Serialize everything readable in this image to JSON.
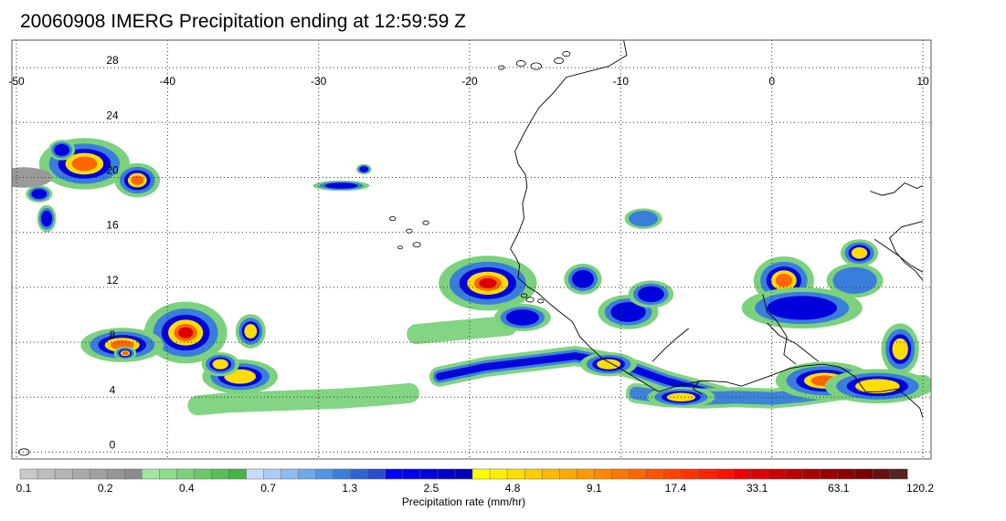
{
  "title": "20060908 IMERG Precipitation ending at 12:59:59 Z",
  "map": {
    "lon_range": [
      -50,
      10
    ],
    "lat_range": [
      -0.5,
      30
    ],
    "lon_ticks": [
      -50,
      -40,
      -30,
      -20,
      -10,
      0,
      10
    ],
    "lat_ticks": [
      0,
      4,
      8,
      12,
      16,
      20,
      24,
      28
    ],
    "lon_tick_labels": [
      "-50",
      "-40",
      "-30",
      "-20",
      "-10",
      "0",
      "10"
    ],
    "lat_tick_labels": [
      "0",
      "4",
      "8",
      "12",
      "16",
      "20",
      "24",
      "28"
    ],
    "grid": true
  },
  "colorbar": {
    "title": "Precipitation rate (mm/hr)",
    "tick_labels": [
      "0.1",
      "0.2",
      "0.4",
      "0.7",
      "1.3",
      "2.5",
      "4.8",
      "9.1",
      "17.4",
      "33.1",
      "63.1",
      "120.2"
    ],
    "colors": [
      "#c8c8c8",
      "#bebebe",
      "#b4b4b4",
      "#aaaaaa",
      "#a0a0a0",
      "#969696",
      "#8c8c8c",
      "#a0e6a0",
      "#8edc8e",
      "#7cd27c",
      "#6ac86a",
      "#58be58",
      "#46b446",
      "#c8dcff",
      "#aaccf6",
      "#8cbcf0",
      "#6eaaea",
      "#5094e4",
      "#3a7edc",
      "#2e64d4",
      "#2a4ccc",
      "#0000ff",
      "#0000ee",
      "#0000dd",
      "#0000cc",
      "#0000bb",
      "#ffff00",
      "#ffee00",
      "#ffdd00",
      "#ffcc00",
      "#ffbb00",
      "#ffaa00",
      "#ff9900",
      "#ff8800",
      "#ff7700",
      "#ff6600",
      "#ff5500",
      "#ff4400",
      "#ff3300",
      "#ff2200",
      "#ff1100",
      "#ee0000",
      "#dd0000",
      "#cc0000",
      "#bb0000",
      "#aa0000",
      "#990000",
      "#880000",
      "#770000",
      "#661111",
      "#552222"
    ]
  },
  "precip_cells": [
    {
      "lon": -18.8,
      "lat": 12.3,
      "rx": 2.6,
      "ry": 1.6,
      "level": 5
    },
    {
      "lon": -38.8,
      "lat": 8.7,
      "rx": 2.2,
      "ry": 1.8,
      "level": 5
    },
    {
      "lon": -45.5,
      "lat": 21.0,
      "rx": 2.4,
      "ry": 1.5,
      "level": 4
    },
    {
      "lon": -42.0,
      "lat": 19.8,
      "rx": 1.2,
      "ry": 1.0,
      "level": 4
    },
    {
      "lon": -43.0,
      "lat": 7.8,
      "rx": 2.2,
      "ry": 1.0,
      "level": 4
    },
    {
      "lon": -35.2,
      "lat": 5.5,
      "rx": 2.0,
      "ry": 1.0,
      "level": 3
    },
    {
      "lon": -34.5,
      "lat": 8.8,
      "rx": 0.8,
      "ry": 1.0,
      "level": 3
    },
    {
      "lon": -36.5,
      "lat": 6.4,
      "rx": 1.0,
      "ry": 0.7,
      "level": 3
    },
    {
      "lon": -48.0,
      "lat": 17.0,
      "rx": 0.5,
      "ry": 0.8,
      "level": 2
    },
    {
      "lon": -48.5,
      "lat": 18.8,
      "rx": 0.7,
      "ry": 0.5,
      "level": 2
    },
    {
      "lon": -49.5,
      "lat": 20.0,
      "rx": 1.5,
      "ry": 0.6,
      "level": 0
    },
    {
      "lon": -47.0,
      "lat": 22.0,
      "rx": 0.7,
      "ry": 0.6,
      "level": 2
    },
    {
      "lon": 0.8,
      "lat": 12.5,
      "rx": 1.6,
      "ry": 1.4,
      "level": 4
    },
    {
      "lon": 2.0,
      "lat": 10.5,
      "rx": 3.2,
      "ry": 1.2,
      "level": 2
    },
    {
      "lon": 5.5,
      "lat": 12.5,
      "rx": 1.5,
      "ry": 1.0,
      "level": 1
    },
    {
      "lon": 5.8,
      "lat": 14.5,
      "rx": 1.0,
      "ry": 0.8,
      "level": 3
    },
    {
      "lon": 3.5,
      "lat": 5.2,
      "rx": 2.6,
      "ry": 1.1,
      "level": 4
    },
    {
      "lon": 7.0,
      "lat": 4.8,
      "rx": 2.8,
      "ry": 1.0,
      "level": 3
    },
    {
      "lon": 8.5,
      "lat": 7.5,
      "rx": 1.0,
      "ry": 1.5,
      "level": 3
    },
    {
      "lon": -9.5,
      "lat": 10.2,
      "rx": 1.6,
      "ry": 1.0,
      "level": 2
    },
    {
      "lon": -8.0,
      "lat": 11.5,
      "rx": 1.2,
      "ry": 0.8,
      "level": 2
    },
    {
      "lon": -16.5,
      "lat": 9.8,
      "rx": 1.5,
      "ry": 0.8,
      "level": 2
    },
    {
      "lon": -12.5,
      "lat": 12.6,
      "rx": 1.0,
      "ry": 0.9,
      "level": 2
    },
    {
      "lon": -8.5,
      "lat": 17.0,
      "rx": 1.0,
      "ry": 0.6,
      "level": 1
    },
    {
      "lon": -28.5,
      "lat": 19.4,
      "rx": 1.5,
      "ry": 0.3,
      "level": 2
    },
    {
      "lon": -27.0,
      "lat": 20.6,
      "rx": 0.4,
      "ry": 0.3,
      "level": 2
    },
    {
      "lon": -42.8,
      "lat": 7.2,
      "rx": 0.6,
      "ry": 0.4,
      "level": 4
    },
    {
      "lon": -10.8,
      "lat": 6.4,
      "rx": 1.5,
      "ry": 0.7,
      "level": 3
    },
    {
      "lon": -6.0,
      "lat": 4.0,
      "rx": 1.8,
      "ry": 0.6,
      "level": 3
    }
  ],
  "precip_bands": [
    {
      "points": [
        [
          -22.0,
          5.5
        ],
        [
          -19.0,
          6.2
        ],
        [
          -16.0,
          6.6
        ],
        [
          -13.0,
          7.0
        ],
        [
          -11.0,
          6.6
        ],
        [
          -9.0,
          6.0
        ],
        [
          -7.0,
          5.2
        ],
        [
          -5.0,
          4.6
        ],
        [
          -3.0,
          4.0
        ]
      ],
      "level": 3
    },
    {
      "points": [
        [
          -9.0,
          4.3
        ],
        [
          -7.0,
          4.0
        ],
        [
          -4.5,
          3.9
        ],
        [
          -2.5,
          4.0
        ],
        [
          0.0,
          3.9
        ],
        [
          2.0,
          4.1
        ],
        [
          4.5,
          4.5
        ],
        [
          7.5,
          4.6
        ],
        [
          10.0,
          4.9
        ]
      ],
      "level": 2
    },
    {
      "points": [
        [
          -38.0,
          3.4
        ],
        [
          -36.0,
          3.6
        ],
        [
          -33.5,
          3.7
        ],
        [
          -31.0,
          3.8
        ],
        [
          -28.5,
          3.9
        ],
        [
          -26.0,
          4.1
        ],
        [
          -24.0,
          4.3
        ]
      ],
      "level": 1
    },
    {
      "points": [
        [
          -23.5,
          8.6
        ],
        [
          -21.5,
          8.8
        ],
        [
          -19.5,
          9.0
        ],
        [
          -17.5,
          9.2
        ]
      ],
      "level": 1
    }
  ],
  "coastline": [
    [
      [
        -9.8,
        30.0
      ],
      [
        -9.6,
        28.9
      ],
      [
        -10.8,
        28.1
      ],
      [
        -12.2,
        27.7
      ],
      [
        -13.6,
        27.3
      ],
      [
        -14.5,
        26.1
      ],
      [
        -15.4,
        25.1
      ],
      [
        -16.0,
        24.0
      ],
      [
        -16.5,
        23.0
      ],
      [
        -17.0,
        21.9
      ],
      [
        -16.8,
        21.0
      ],
      [
        -16.3,
        20.2
      ],
      [
        -16.2,
        19.3
      ],
      [
        -16.5,
        18.1
      ],
      [
        -16.4,
        17.0
      ],
      [
        -16.8,
        15.9
      ],
      [
        -17.3,
        14.8
      ],
      [
        -16.9,
        14.1
      ],
      [
        -16.7,
        13.6
      ],
      [
        -16.8,
        12.7
      ],
      [
        -16.1,
        12.0
      ],
      [
        -15.5,
        11.6
      ],
      [
        -14.7,
        10.8
      ],
      [
        -13.8,
        10.0
      ],
      [
        -13.2,
        9.5
      ],
      [
        -12.7,
        8.4
      ],
      [
        -12.0,
        7.6
      ],
      [
        -11.2,
        6.8
      ],
      [
        -10.2,
        6.2
      ],
      [
        -9.0,
        5.4
      ],
      [
        -7.5,
        4.4
      ],
      [
        -6.0,
        4.9
      ],
      [
        -4.5,
        5.2
      ],
      [
        -3.0,
        5.1
      ],
      [
        -2.0,
        4.8
      ],
      [
        -1.0,
        5.2
      ],
      [
        0.0,
        5.6
      ],
      [
        1.2,
        6.1
      ],
      [
        2.3,
        6.3
      ],
      [
        3.4,
        6.4
      ],
      [
        4.5,
        6.2
      ],
      [
        5.5,
        5.5
      ],
      [
        6.2,
        4.4
      ],
      [
        7.2,
        4.4
      ],
      [
        8.3,
        4.6
      ],
      [
        8.9,
        4.1
      ],
      [
        9.8,
        3.2
      ],
      [
        10.0,
        2.5
      ]
    ],
    [
      [
        10.0,
        12.5
      ],
      [
        9.5,
        13.2
      ],
      [
        8.8,
        13.8
      ],
      [
        8.2,
        14.6
      ],
      [
        7.8,
        15.6
      ],
      [
        8.6,
        16.4
      ],
      [
        10.0,
        16.8
      ]
    ],
    [
      [
        -0.6,
        11.5
      ],
      [
        -0.3,
        10.2
      ],
      [
        0.3,
        9.6
      ],
      [
        1.0,
        8.4
      ],
      [
        0.8,
        7.1
      ],
      [
        1.6,
        6.4
      ]
    ],
    [
      [
        -0.3,
        9.4
      ],
      [
        0.5,
        8.5
      ],
      [
        1.6,
        7.9
      ],
      [
        2.4,
        7.2
      ],
      [
        3.1,
        6.6
      ]
    ],
    [
      [
        -4.8,
        5.2
      ],
      [
        -5.2,
        4.6
      ],
      [
        -4.6,
        4.2
      ]
    ],
    [
      [
        -5.5,
        9.0
      ],
      [
        -6.3,
        8.3
      ],
      [
        -7.1,
        7.5
      ],
      [
        -7.9,
        6.6
      ]
    ],
    [
      [
        6.8,
        15.5
      ],
      [
        7.6,
        14.9
      ],
      [
        8.4,
        14.3
      ],
      [
        9.2,
        13.6
      ],
      [
        10.0,
        13.1
      ]
    ],
    [
      [
        6.5,
        19.0
      ],
      [
        7.3,
        18.7
      ],
      [
        8.1,
        18.9
      ],
      [
        8.8,
        19.6
      ],
      [
        9.6,
        19.2
      ],
      [
        10.0,
        19.4
      ]
    ]
  ],
  "islands": [
    {
      "lon": -15.6,
      "lat": 28.1,
      "r": 0.35
    },
    {
      "lon": -16.6,
      "lat": 28.3,
      "r": 0.3
    },
    {
      "lon": -17.9,
      "lat": 28.0,
      "r": 0.2
    },
    {
      "lon": -14.1,
      "lat": 28.5,
      "r": 0.3
    },
    {
      "lon": -13.6,
      "lat": 29.0,
      "r": 0.25
    },
    {
      "lon": -24.0,
      "lat": 16.1,
      "r": 0.2
    },
    {
      "lon": -23.5,
      "lat": 15.1,
      "r": 0.25
    },
    {
      "lon": -22.9,
      "lat": 16.7,
      "r": 0.2
    },
    {
      "lon": -24.6,
      "lat": 14.9,
      "r": 0.15
    },
    {
      "lon": -25.1,
      "lat": 17.0,
      "r": 0.2
    },
    {
      "lon": -16.0,
      "lat": 11.1,
      "r": 0.25
    },
    {
      "lon": -16.4,
      "lat": 11.4,
      "r": 0.2
    },
    {
      "lon": -15.3,
      "lat": 11.0,
      "r": 0.2
    },
    {
      "lon": -49.5,
      "lat": 0.0,
      "r": 0.35
    }
  ]
}
